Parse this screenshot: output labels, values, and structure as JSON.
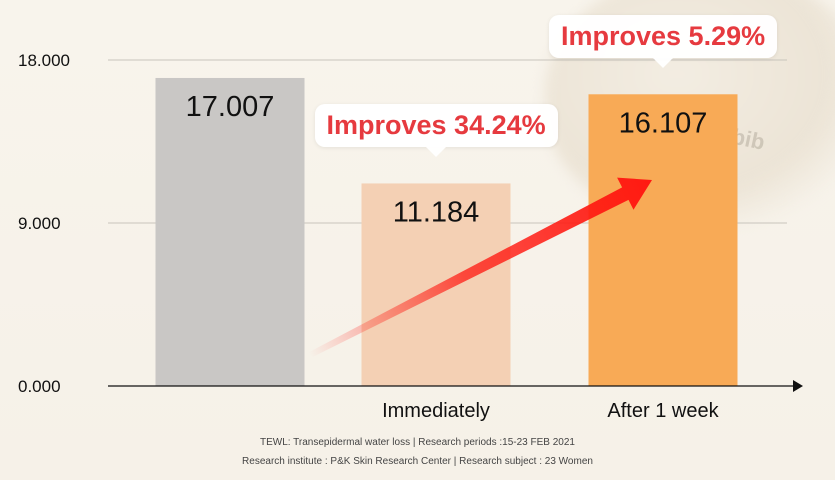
{
  "chart_data": {
    "type": "bar",
    "categories": [
      "",
      "Immediately",
      "After 1 week"
    ],
    "values": [
      17.007,
      11.184,
      16.107
    ],
    "value_labels": [
      "17.007",
      "11.184",
      "16.107"
    ],
    "bar_colors": [
      "#c9c7c5",
      "#f4d0b4",
      "#f8aa56"
    ],
    "ylim": [
      0,
      18
    ],
    "yticks": [
      0,
      9,
      18
    ],
    "ytick_labels": [
      "0.000",
      "9.000",
      "18.000"
    ],
    "grid": true,
    "annotations": [
      {
        "text": "Improves 34.24%",
        "category": "Immediately",
        "color": "#e63a3f"
      },
      {
        "text": "Improves 5.29%",
        "category": "After 1 week",
        "color": "#e63a3f"
      }
    ],
    "arrow": {
      "from": "Immediately",
      "to": "After 1 week",
      "color": "#ff1a12"
    }
  },
  "footnotes": [
    "TEWL: Transepidermal water loss | Research periods :15-23 FEB 2021",
    "Research institute : P&K Skin Research Center | Research subject : 23 Women"
  ],
  "background": {
    "jar_text": "Abib"
  }
}
